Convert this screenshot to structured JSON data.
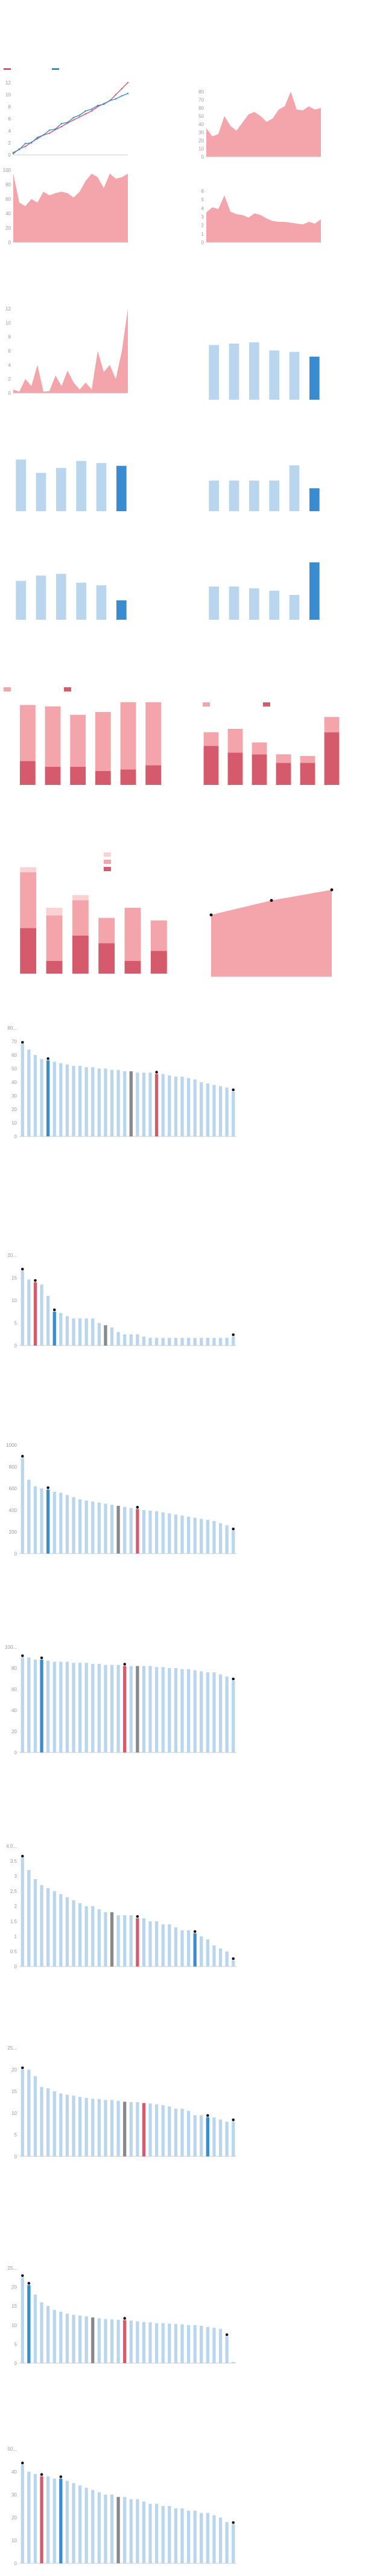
{
  "colors": {
    "red": "#d45a6c",
    "pink": "#f4a4ab",
    "blue": "#3a8cd0",
    "lightblue": "#b9d6ee",
    "grey": "#888888",
    "dot": "#111111",
    "axis": "#cccccc"
  },
  "chart_data": [
    {
      "id": "p1",
      "type": "line",
      "legend_placement": "top-left",
      "x": [
        1,
        2,
        3,
        4,
        5,
        6,
        7,
        8,
        9,
        10,
        11,
        12,
        13,
        14,
        15,
        16,
        17,
        18,
        19,
        20
      ],
      "series": [
        {
          "name": "",
          "color": "red",
          "values": [
            0.2,
            1.0,
            1.4,
            2.1,
            2.7,
            3.3,
            3.6,
            4.2,
            4.7,
            5.3,
            5.8,
            6.3,
            6.8,
            7.3,
            8.0,
            8.5,
            9.0,
            10.0,
            11.0,
            12.0
          ]
        },
        {
          "name": "",
          "color": "blue",
          "values": [
            0.4,
            0.9,
            1.9,
            2.0,
            2.9,
            3.3,
            4.1,
            4.3,
            5.2,
            5.4,
            6.2,
            6.6,
            7.3,
            7.6,
            8.2,
            8.4,
            9.0,
            9.3,
            9.8,
            10.2
          ]
        }
      ],
      "ylim": [
        0,
        12
      ],
      "yticks": [
        "0",
        "2",
        "4",
        "6",
        "8",
        "10",
        "12"
      ]
    },
    {
      "id": "p2",
      "type": "area",
      "color": "pink",
      "values": [
        35,
        25,
        28,
        50,
        38,
        32,
        42,
        52,
        55,
        50,
        43,
        47,
        58,
        62,
        80,
        58,
        57,
        62,
        58,
        60
      ],
      "ylim": [
        0,
        80
      ],
      "yticks": [
        "0",
        "10",
        "20",
        "30",
        "40",
        "50",
        "60",
        "70",
        "80"
      ]
    },
    {
      "id": "p3",
      "type": "area",
      "color": "pink",
      "values": [
        95,
        55,
        50,
        60,
        55,
        70,
        65,
        68,
        70,
        68,
        62,
        70,
        85,
        95,
        90,
        75,
        95,
        88,
        90,
        95
      ],
      "ylim": [
        0,
        100
      ],
      "yticks": [
        "0",
        "20",
        "40",
        "60",
        "80",
        "100"
      ]
    },
    {
      "id": "p4",
      "type": "area",
      "color": "pink",
      "values": [
        3.5,
        4.1,
        3.9,
        5.5,
        3.6,
        3.3,
        3.2,
        2.9,
        3.4,
        3.2,
        2.8,
        2.5,
        2.4,
        2.4,
        2.3,
        2.2,
        2.1,
        2.4,
        2.2,
        2.7
      ],
      "ylim": [
        0,
        6
      ],
      "yticks": [
        "0",
        "1",
        "2",
        "3",
        "4",
        "5",
        "6"
      ]
    },
    {
      "id": "p5",
      "type": "area",
      "color": "pink",
      "values": [
        0.5,
        0.2,
        2,
        1,
        4,
        0.2,
        0.3,
        2.5,
        1,
        3.2,
        1.5,
        0.5,
        1.5,
        0.5,
        6,
        3,
        4,
        2,
        6,
        12
      ],
      "ylim": [
        0,
        12
      ],
      "yticks": [
        "0",
        "2",
        "4",
        "6",
        "8",
        "10",
        "12"
      ]
    },
    {
      "id": "p6",
      "type": "bar",
      "values": [
        8,
        8.2,
        8.4,
        7.2,
        7,
        6.3
      ],
      "highlight": [
        5
      ]
    },
    {
      "id": "p7",
      "type": "bar",
      "values": [
        7.4,
        5.5,
        6.2,
        7.2,
        6.9,
        6.5
      ],
      "highlight": [
        5
      ]
    },
    {
      "id": "p8",
      "type": "bar",
      "values": [
        4,
        4,
        4,
        4,
        6,
        3
      ],
      "highlight": [
        5
      ]
    },
    {
      "id": "p9",
      "type": "bar",
      "values": [
        4.4,
        5,
        5.2,
        4.2,
        3.9,
        2.2
      ],
      "highlight": [
        5
      ]
    },
    {
      "id": "p10",
      "type": "bar",
      "values": [
        5.5,
        5.5,
        5.2,
        4.8,
        4.1,
        9.5
      ],
      "highlight": [
        5
      ]
    },
    {
      "id": "p11",
      "type": "stacked-bar",
      "legend_placement": "top",
      "series": [
        {
          "name": "",
          "color": "red",
          "values": [
            17,
            13,
            13,
            10,
            11,
            14
          ]
        },
        {
          "name": "",
          "color": "pink",
          "values": [
            40,
            43,
            37,
            42,
            48,
            45
          ]
        }
      ]
    },
    {
      "id": "p12",
      "type": "stacked-bar",
      "legend_placement": "top",
      "series": [
        {
          "name": "",
          "color": "red",
          "values": [
            23,
            19,
            18,
            13,
            13,
            31
          ]
        },
        {
          "name": "",
          "color": "pink",
          "values": [
            8,
            14,
            7,
            5,
            4,
            9
          ]
        }
      ]
    },
    {
      "id": "p13",
      "type": "stacked-bar",
      "legend_placement": "top-right",
      "series": [
        {
          "name": "",
          "color": "red",
          "values": [
            18,
            5,
            15,
            12,
            5,
            9
          ]
        },
        {
          "name": "",
          "color": "pink",
          "values": [
            22,
            18,
            14,
            10,
            21,
            12
          ]
        },
        {
          "name": "",
          "color": "lightpink",
          "values": [
            2,
            3,
            2,
            0,
            0,
            0
          ]
        }
      ]
    },
    {
      "id": "p14",
      "type": "area",
      "color": "pink",
      "x": [
        0,
        1,
        2
      ],
      "values": [
        64,
        79,
        90
      ],
      "ylim": [
        0,
        100
      ]
    },
    {
      "id": "r1",
      "type": "bar",
      "ylim": [
        0,
        80
      ],
      "yticks": [
        "0",
        "10",
        "20",
        "30",
        "40",
        "50",
        "60",
        "70",
        "80..."
      ],
      "values": [
        68,
        64,
        60,
        57,
        56,
        55,
        54,
        53,
        52,
        52,
        51,
        51,
        50,
        50,
        49,
        49,
        48,
        48,
        47,
        47,
        47,
        46,
        46,
        45,
        44,
        44,
        43,
        42,
        40,
        39,
        38,
        37,
        36,
        33
      ],
      "colors": {
        "4": "blue",
        "17": "grey",
        "21": "red"
      },
      "dots": [
        0,
        4,
        21,
        33
      ]
    },
    {
      "id": "r2",
      "type": "bar",
      "ylim": [
        0,
        20
      ],
      "yticks": [
        "0",
        "5",
        "10",
        "15",
        "20..."
      ],
      "values": [
        16.5,
        14.6,
        14,
        13.5,
        11,
        7.5,
        7.2,
        6.5,
        6,
        6,
        6,
        6,
        5,
        4.5,
        4,
        3,
        2.5,
        2.5,
        2.5,
        2,
        1.7,
        1.7,
        1.7,
        1.7,
        1.7,
        1.7,
        1.7,
        1.7,
        1.7,
        1.7,
        1.7,
        1.7,
        1.7,
        2
      ],
      "colors": {
        "2": "red",
        "5": "blue",
        "13": "grey"
      },
      "dots": [
        0,
        2,
        5,
        33
      ]
    },
    {
      "id": "r3",
      "type": "bar",
      "ylim": [
        0,
        1000
      ],
      "yticks": [
        "0",
        "200",
        "400",
        "600",
        "800",
        "1000"
      ],
      "values": [
        880,
        680,
        620,
        600,
        590,
        570,
        560,
        540,
        520,
        500,
        490,
        480,
        470,
        460,
        450,
        440,
        430,
        420,
        410,
        400,
        395,
        390,
        380,
        370,
        360,
        350,
        340,
        330,
        320,
        310,
        300,
        280,
        260,
        210
      ],
      "colors": {
        "4": "blue",
        "15": "grey",
        "18": "red"
      },
      "dots": [
        0,
        4,
        18,
        33
      ]
    },
    {
      "id": "r4",
      "type": "bar",
      "ylim": [
        0,
        100
      ],
      "yticks": [
        "0",
        "20",
        "40",
        "60",
        "80",
        "100..."
      ],
      "values": [
        90,
        90,
        88,
        88,
        87,
        86,
        86,
        86,
        85,
        85,
        85,
        84,
        84,
        83,
        83,
        83,
        82,
        82,
        82,
        82,
        82,
        81,
        81,
        80,
        80,
        79,
        79,
        78,
        77,
        76,
        76,
        74,
        72,
        68
      ],
      "colors": {
        "3": "blue",
        "16": "red",
        "18": "grey"
      },
      "dots": [
        0,
        3,
        16,
        33
      ]
    },
    {
      "id": "r5",
      "type": "bar",
      "ylim": [
        0,
        4
      ],
      "yticks": [
        "0",
        "0.5",
        "1",
        "1.5",
        "2",
        "2.5",
        "3",
        "3.5",
        "4.0..."
      ],
      "values": [
        3.6,
        3.2,
        2.9,
        2.7,
        2.6,
        2.5,
        2.4,
        2.3,
        2.2,
        2.1,
        2.0,
        2.0,
        1.9,
        1.8,
        1.8,
        1.7,
        1.7,
        1.7,
        1.6,
        1.6,
        1.5,
        1.5,
        1.4,
        1.4,
        1.3,
        1.2,
        1.2,
        1.1,
        1.0,
        0.9,
        0.7,
        0.6,
        0.5,
        0.2
      ],
      "colors": {
        "14": "grey",
        "18": "red",
        "27": "blue"
      },
      "dots": [
        0,
        18,
        27,
        33
      ]
    },
    {
      "id": "r6",
      "type": "bar",
      "ylim": [
        0,
        25
      ],
      "yticks": [
        "0",
        "5",
        "10",
        "15",
        "20",
        "25..."
      ],
      "values": [
        20,
        20,
        18.5,
        16,
        15.7,
        15,
        14.5,
        14.2,
        14,
        13.7,
        13.5,
        13.3,
        13.2,
        13,
        13,
        12.8,
        12.6,
        12.5,
        12.5,
        12.3,
        12.2,
        12,
        11.8,
        11.5,
        11,
        11,
        10.5,
        9.5,
        9.5,
        9,
        9,
        8.5,
        8,
        8
      ],
      "colors": {
        "16": "grey",
        "19": "red",
        "29": "blue"
      },
      "dots": [
        0,
        29,
        33
      ]
    },
    {
      "id": "r7",
      "type": "bar",
      "ylim": [
        0,
        25
      ],
      "yticks": [
        "0",
        "5",
        "10",
        "15",
        "20",
        "25..."
      ],
      "values": [
        22.5,
        20.5,
        18,
        16,
        15,
        14,
        13.5,
        13,
        12.7,
        12.5,
        12.3,
        12,
        11.8,
        11.6,
        11.5,
        11.4,
        11.3,
        11.2,
        11,
        10.8,
        10.7,
        10.5,
        10.5,
        10.4,
        10.3,
        10.2,
        10,
        10,
        9.8,
        9.5,
        9.3,
        9,
        7,
        0.3
      ],
      "colors": {
        "1": "blue",
        "11": "grey",
        "16": "red"
      },
      "dots": [
        0,
        1,
        16,
        32
      ]
    },
    {
      "id": "r8",
      "type": "bar",
      "ylim": [
        0,
        50
      ],
      "yticks": [
        "0",
        "10",
        "20",
        "30",
        "40",
        "50..."
      ],
      "values": [
        43,
        40,
        39,
        38,
        38,
        37,
        37,
        36,
        35,
        34,
        33,
        32,
        31,
        30,
        30,
        29,
        29,
        28,
        28,
        27,
        26,
        26,
        25,
        25,
        24,
        24,
        23,
        23,
        22,
        22,
        21,
        20,
        18,
        17
      ],
      "colors": {
        "3": "red",
        "6": "blue",
        "15": "grey"
      },
      "dots": [
        0,
        3,
        6,
        33
      ]
    }
  ]
}
